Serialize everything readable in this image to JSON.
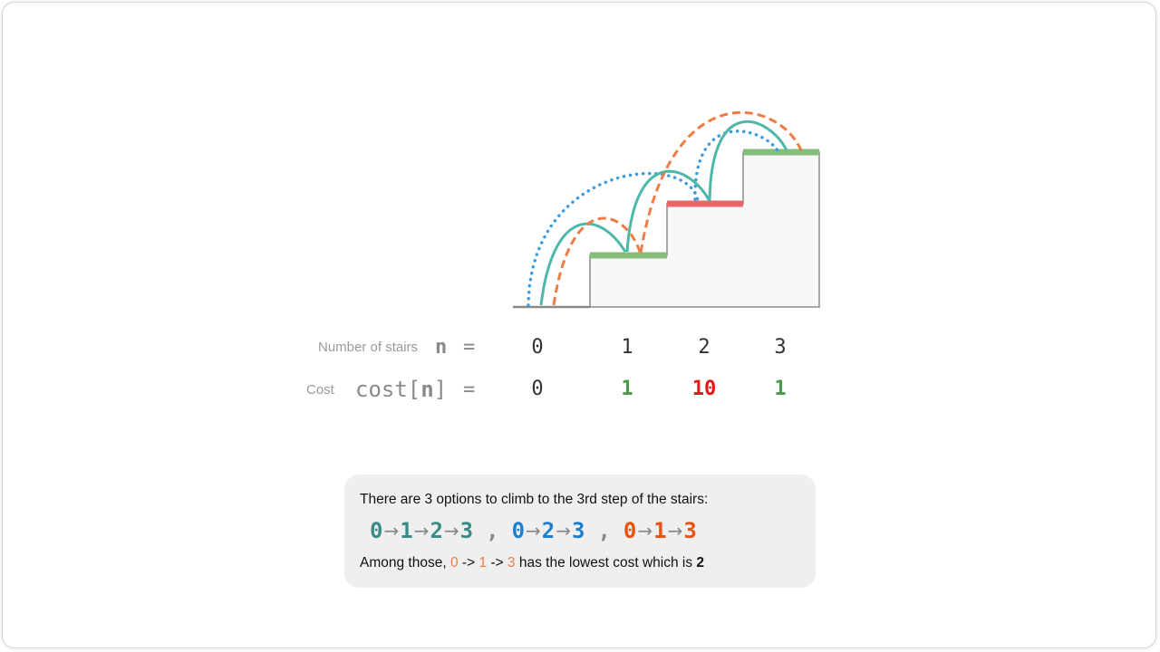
{
  "colors": {
    "teal": "#4cb8aa",
    "blue": "#3b9be0",
    "orange": "#ef7c46",
    "green_step": "#86bd7a",
    "red_step": "#ec6468",
    "stairs_fill": "#f8f8f8",
    "stairs_line": "#8a8a8a",
    "cost_green": "#4a9a4a",
    "cost_red": "#e01818",
    "path_teal": "#3a8c86",
    "path_blue": "#1e7fcf",
    "path_orange": "#e8530f"
  },
  "table": {
    "stairs_label": "Number of stairs",
    "stairs_symbol": "n",
    "equals": "=",
    "cost_label": "Cost",
    "cost_symbol_pre": "cost[",
    "cost_symbol_n": "n",
    "cost_symbol_post": "]",
    "stairs": [
      "0",
      "1",
      "2",
      "3"
    ],
    "costs": [
      "0",
      "1",
      "10",
      "1"
    ]
  },
  "info": {
    "line1": "There are 3 options to climb to the 3rd step of the stairs:",
    "path1": [
      "0",
      "1",
      "2",
      "3"
    ],
    "path2": [
      "0",
      "2",
      "3"
    ],
    "path3": [
      "0",
      "1",
      "3"
    ],
    "arrow": "→",
    "comma": ",",
    "line3_pre": "Among those,",
    "line3_path": [
      "0",
      "1",
      "3"
    ],
    "line3_arrow": "->",
    "line3_post": "has the lowest cost which is",
    "lowest_cost": "2"
  }
}
